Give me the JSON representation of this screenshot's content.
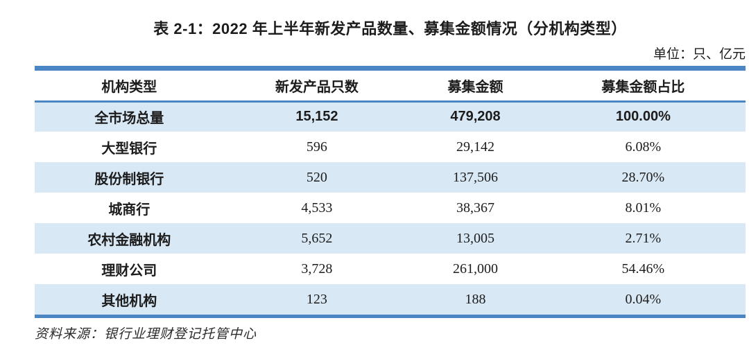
{
  "colors": {
    "accent": "#4a86c4",
    "row_alt": "#d9e8f5",
    "text": "#1c1c1c",
    "source_text": "#2b2b2b"
  },
  "table": {
    "title": "表 2-1：2022 年上半年新发产品数量、募集金额情况（分机构类型）",
    "unit_note": "单位：只、亿元",
    "columns": [
      "机构类型",
      "新发产品只数",
      "募集金额",
      "募集金额占比"
    ],
    "rows": [
      {
        "org": "全市场总量",
        "count": "15,152",
        "amount": "479,208",
        "share": "100.00%",
        "emphasis": true
      },
      {
        "org": "大型银行",
        "count": "596",
        "amount": "29,142",
        "share": "6.08%",
        "emphasis": false
      },
      {
        "org": "股份制银行",
        "count": "520",
        "amount": "137,506",
        "share": "28.70%",
        "emphasis": false
      },
      {
        "org": "城商行",
        "count": "4,533",
        "amount": "38,367",
        "share": "8.01%",
        "emphasis": false
      },
      {
        "org": "农村金融机构",
        "count": "5,652",
        "amount": "13,005",
        "share": "2.71%",
        "emphasis": false
      },
      {
        "org": "理财公司",
        "count": "3,728",
        "amount": "261,000",
        "share": "54.46%",
        "emphasis": false
      },
      {
        "org": "其他机构",
        "count": "123",
        "amount": "188",
        "share": "0.04%",
        "emphasis": false
      }
    ],
    "source": "资料来源：银行业理财登记托管中心"
  }
}
